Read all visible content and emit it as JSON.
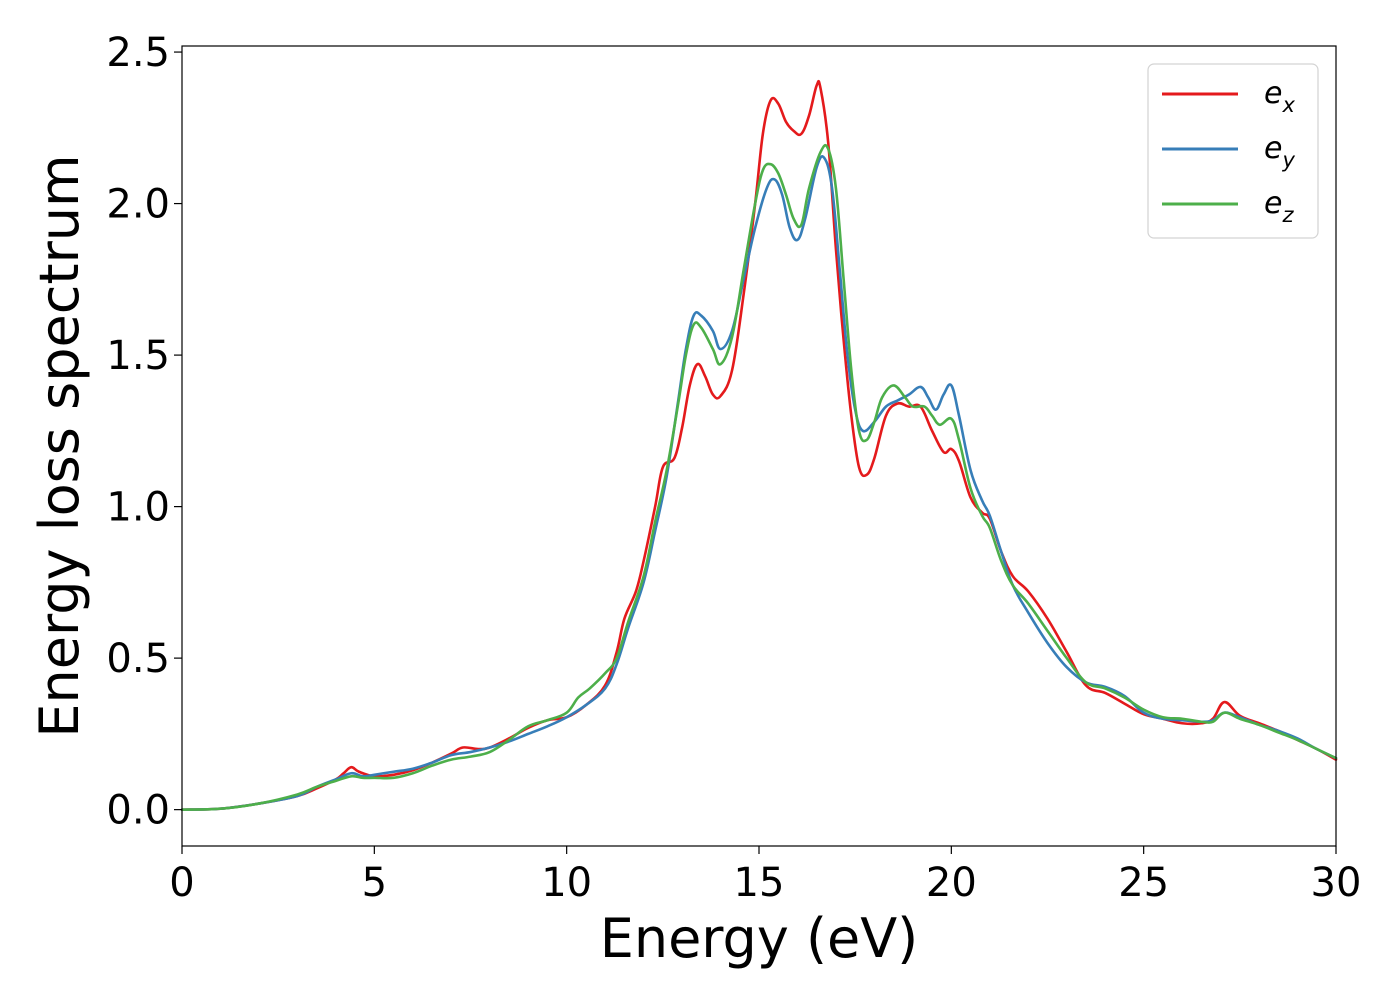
{
  "chart_data": {
    "type": "line",
    "title": "",
    "xlabel": "Energy (eV)",
    "ylabel": "Energy loss spectrum",
    "xlim": [
      0,
      30
    ],
    "ylim": [
      -0.12,
      2.52
    ],
    "xticks": [
      0,
      5,
      10,
      15,
      20,
      25,
      30
    ],
    "xtick_labels": [
      "0",
      "5",
      "10",
      "15",
      "20",
      "25",
      "30"
    ],
    "yticks": [
      0.0,
      0.5,
      1.0,
      1.5,
      2.0,
      2.5
    ],
    "ytick_labels": [
      "0.0",
      "0.5",
      "1.0",
      "1.5",
      "2.0",
      "2.5"
    ],
    "grid": false,
    "legend_position": "top-right",
    "series": [
      {
        "name": "e_x",
        "label_base": "e",
        "label_sub": "x",
        "color": "#e41a1c",
        "points": [
          [
            0,
            0
          ],
          [
            1,
            0.003
          ],
          [
            2,
            0.02
          ],
          [
            3,
            0.045
          ],
          [
            3.5,
            0.07
          ],
          [
            4,
            0.1
          ],
          [
            4.2,
            0.12
          ],
          [
            4.4,
            0.14
          ],
          [
            4.6,
            0.125
          ],
          [
            5,
            0.11
          ],
          [
            5.5,
            0.115
          ],
          [
            6,
            0.13
          ],
          [
            6.5,
            0.155
          ],
          [
            7,
            0.185
          ],
          [
            7.3,
            0.205
          ],
          [
            7.7,
            0.2
          ],
          [
            8,
            0.205
          ],
          [
            8.5,
            0.235
          ],
          [
            9,
            0.27
          ],
          [
            9.5,
            0.295
          ],
          [
            10,
            0.305
          ],
          [
            10.5,
            0.345
          ],
          [
            11,
            0.41
          ],
          [
            11.3,
            0.52
          ],
          [
            11.5,
            0.63
          ],
          [
            11.8,
            0.72
          ],
          [
            12,
            0.82
          ],
          [
            12.3,
            1.0
          ],
          [
            12.5,
            1.13
          ],
          [
            12.8,
            1.16
          ],
          [
            13,
            1.26
          ],
          [
            13.2,
            1.4
          ],
          [
            13.4,
            1.47
          ],
          [
            13.6,
            1.43
          ],
          [
            13.8,
            1.37
          ],
          [
            14,
            1.365
          ],
          [
            14.3,
            1.45
          ],
          [
            14.6,
            1.7
          ],
          [
            14.9,
            2.0
          ],
          [
            15.1,
            2.23
          ],
          [
            15.3,
            2.34
          ],
          [
            15.5,
            2.33
          ],
          [
            15.7,
            2.27
          ],
          [
            15.9,
            2.24
          ],
          [
            16.1,
            2.23
          ],
          [
            16.3,
            2.29
          ],
          [
            16.5,
            2.39
          ],
          [
            16.6,
            2.38
          ],
          [
            16.8,
            2.2
          ],
          [
            17.0,
            1.85
          ],
          [
            17.2,
            1.55
          ],
          [
            17.4,
            1.3
          ],
          [
            17.6,
            1.13
          ],
          [
            17.8,
            1.105
          ],
          [
            18.0,
            1.16
          ],
          [
            18.3,
            1.3
          ],
          [
            18.6,
            1.34
          ],
          [
            18.9,
            1.33
          ],
          [
            19.2,
            1.33
          ],
          [
            19.5,
            1.25
          ],
          [
            19.8,
            1.18
          ],
          [
            20.0,
            1.19
          ],
          [
            20.2,
            1.15
          ],
          [
            20.5,
            1.03
          ],
          [
            20.8,
            0.98
          ],
          [
            21.0,
            0.96
          ],
          [
            21.3,
            0.85
          ],
          [
            21.6,
            0.77
          ],
          [
            22.0,
            0.72
          ],
          [
            22.5,
            0.63
          ],
          [
            23.0,
            0.52
          ],
          [
            23.5,
            0.41
          ],
          [
            24.0,
            0.385
          ],
          [
            24.5,
            0.35
          ],
          [
            25.0,
            0.315
          ],
          [
            25.5,
            0.3
          ],
          [
            26.0,
            0.285
          ],
          [
            26.5,
            0.285
          ],
          [
            26.8,
            0.3
          ],
          [
            27.1,
            0.355
          ],
          [
            27.5,
            0.31
          ],
          [
            28.0,
            0.285
          ],
          [
            28.5,
            0.26
          ],
          [
            29.0,
            0.23
          ],
          [
            29.5,
            0.2
          ],
          [
            30.0,
            0.165
          ]
        ]
      },
      {
        "name": "e_y",
        "label_base": "e",
        "label_sub": "y",
        "color": "#377eb8",
        "points": [
          [
            0,
            0
          ],
          [
            1,
            0.003
          ],
          [
            2,
            0.02
          ],
          [
            3,
            0.045
          ],
          [
            3.5,
            0.075
          ],
          [
            4,
            0.1
          ],
          [
            4.4,
            0.12
          ],
          [
            4.7,
            0.11
          ],
          [
            5,
            0.115
          ],
          [
            5.5,
            0.125
          ],
          [
            6,
            0.135
          ],
          [
            6.5,
            0.155
          ],
          [
            7,
            0.18
          ],
          [
            7.5,
            0.19
          ],
          [
            8,
            0.205
          ],
          [
            8.5,
            0.225
          ],
          [
            9,
            0.25
          ],
          [
            9.5,
            0.275
          ],
          [
            10,
            0.305
          ],
          [
            10.5,
            0.345
          ],
          [
            11,
            0.4
          ],
          [
            11.3,
            0.48
          ],
          [
            11.6,
            0.6
          ],
          [
            12,
            0.75
          ],
          [
            12.3,
            0.92
          ],
          [
            12.6,
            1.1
          ],
          [
            12.9,
            1.35
          ],
          [
            13.1,
            1.52
          ],
          [
            13.3,
            1.63
          ],
          [
            13.5,
            1.63
          ],
          [
            13.8,
            1.58
          ],
          [
            14.0,
            1.52
          ],
          [
            14.3,
            1.58
          ],
          [
            14.6,
            1.75
          ],
          [
            14.9,
            1.92
          ],
          [
            15.2,
            2.05
          ],
          [
            15.4,
            2.08
          ],
          [
            15.6,
            2.03
          ],
          [
            15.8,
            1.92
          ],
          [
            16.0,
            1.88
          ],
          [
            16.2,
            1.95
          ],
          [
            16.5,
            2.12
          ],
          [
            16.7,
            2.15
          ],
          [
            16.9,
            2.05
          ],
          [
            17.1,
            1.78
          ],
          [
            17.3,
            1.5
          ],
          [
            17.5,
            1.32
          ],
          [
            17.7,
            1.25
          ],
          [
            18.0,
            1.28
          ],
          [
            18.3,
            1.33
          ],
          [
            18.6,
            1.35
          ],
          [
            18.9,
            1.37
          ],
          [
            19.2,
            1.395
          ],
          [
            19.4,
            1.36
          ],
          [
            19.6,
            1.32
          ],
          [
            19.8,
            1.37
          ],
          [
            20.0,
            1.4
          ],
          [
            20.2,
            1.3
          ],
          [
            20.5,
            1.12
          ],
          [
            20.8,
            1.02
          ],
          [
            21.0,
            0.97
          ],
          [
            21.3,
            0.85
          ],
          [
            21.6,
            0.74
          ],
          [
            22.0,
            0.65
          ],
          [
            22.5,
            0.55
          ],
          [
            23.0,
            0.47
          ],
          [
            23.5,
            0.42
          ],
          [
            24.0,
            0.405
          ],
          [
            24.5,
            0.375
          ],
          [
            25.0,
            0.32
          ],
          [
            25.5,
            0.3
          ],
          [
            26.0,
            0.295
          ],
          [
            26.5,
            0.29
          ],
          [
            26.8,
            0.295
          ],
          [
            27.1,
            0.32
          ],
          [
            27.5,
            0.305
          ],
          [
            28.0,
            0.28
          ],
          [
            28.5,
            0.26
          ],
          [
            29.0,
            0.235
          ],
          [
            29.5,
            0.2
          ],
          [
            30.0,
            0.17
          ]
        ]
      },
      {
        "name": "e_z",
        "label_base": "e",
        "label_sub": "z",
        "color": "#4daf4a",
        "points": [
          [
            0,
            0
          ],
          [
            1,
            0.003
          ],
          [
            2,
            0.02
          ],
          [
            3,
            0.05
          ],
          [
            3.5,
            0.075
          ],
          [
            4,
            0.095
          ],
          [
            4.4,
            0.11
          ],
          [
            4.7,
            0.105
          ],
          [
            5,
            0.105
          ],
          [
            5.5,
            0.105
          ],
          [
            6,
            0.12
          ],
          [
            6.5,
            0.145
          ],
          [
            7,
            0.165
          ],
          [
            7.5,
            0.175
          ],
          [
            8,
            0.19
          ],
          [
            8.5,
            0.23
          ],
          [
            9,
            0.275
          ],
          [
            9.5,
            0.295
          ],
          [
            10,
            0.32
          ],
          [
            10.3,
            0.37
          ],
          [
            10.6,
            0.4
          ],
          [
            11,
            0.45
          ],
          [
            11.3,
            0.5
          ],
          [
            11.6,
            0.62
          ],
          [
            12,
            0.77
          ],
          [
            12.3,
            0.95
          ],
          [
            12.6,
            1.12
          ],
          [
            12.9,
            1.34
          ],
          [
            13.1,
            1.5
          ],
          [
            13.3,
            1.6
          ],
          [
            13.5,
            1.59
          ],
          [
            13.8,
            1.52
          ],
          [
            14.0,
            1.47
          ],
          [
            14.3,
            1.56
          ],
          [
            14.6,
            1.78
          ],
          [
            14.9,
            2.0
          ],
          [
            15.1,
            2.11
          ],
          [
            15.3,
            2.13
          ],
          [
            15.5,
            2.1
          ],
          [
            15.7,
            2.03
          ],
          [
            15.9,
            1.95
          ],
          [
            16.1,
            1.93
          ],
          [
            16.3,
            2.05
          ],
          [
            16.6,
            2.17
          ],
          [
            16.8,
            2.18
          ],
          [
            17.0,
            2.05
          ],
          [
            17.2,
            1.75
          ],
          [
            17.4,
            1.45
          ],
          [
            17.6,
            1.25
          ],
          [
            17.8,
            1.22
          ],
          [
            18.0,
            1.28
          ],
          [
            18.2,
            1.36
          ],
          [
            18.5,
            1.4
          ],
          [
            18.8,
            1.36
          ],
          [
            19.0,
            1.33
          ],
          [
            19.3,
            1.33
          ],
          [
            19.5,
            1.3
          ],
          [
            19.7,
            1.27
          ],
          [
            20.0,
            1.29
          ],
          [
            20.2,
            1.22
          ],
          [
            20.5,
            1.06
          ],
          [
            20.8,
            0.97
          ],
          [
            21.0,
            0.93
          ],
          [
            21.3,
            0.82
          ],
          [
            21.6,
            0.74
          ],
          [
            22.0,
            0.68
          ],
          [
            22.5,
            0.59
          ],
          [
            23.0,
            0.5
          ],
          [
            23.5,
            0.42
          ],
          [
            24.0,
            0.4
          ],
          [
            24.5,
            0.37
          ],
          [
            25.0,
            0.33
          ],
          [
            25.5,
            0.305
          ],
          [
            26.0,
            0.3
          ],
          [
            26.5,
            0.29
          ],
          [
            26.8,
            0.29
          ],
          [
            27.1,
            0.32
          ],
          [
            27.5,
            0.3
          ],
          [
            28.0,
            0.28
          ],
          [
            28.5,
            0.255
          ],
          [
            29.0,
            0.23
          ],
          [
            29.5,
            0.2
          ],
          [
            30.0,
            0.17
          ]
        ]
      }
    ]
  }
}
